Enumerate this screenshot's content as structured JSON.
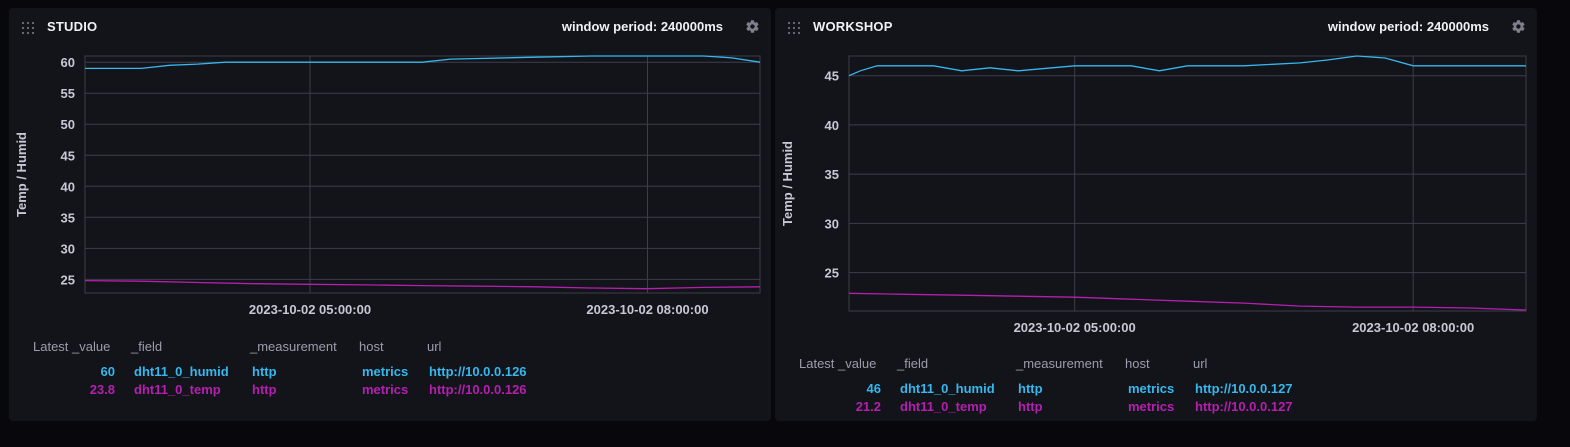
{
  "colors": {
    "humid": "#34b8ee",
    "temp": "#b51fb0",
    "grid": "#3c3e4a",
    "axis_text": "#c6c9d4"
  },
  "panels": [
    {
      "title": "STUDIO",
      "window_period": "window period: 240000ms",
      "legend": {
        "headers": [
          "Latest _value",
          "_field",
          "_measurement",
          "host",
          "url"
        ],
        "rows": [
          {
            "value": "60",
            "field": "dht11_0_humid",
            "measurement": "http",
            "host": "metrics",
            "url": "http://10.0.0.126"
          },
          {
            "value": "23.8",
            "field": "dht11_0_temp",
            "measurement": "http",
            "host": "metrics",
            "url": "http://10.0.0.126"
          }
        ]
      }
    },
    {
      "title": "WORKSHOP",
      "window_period": "window period: 240000ms",
      "legend": {
        "headers": [
          "Latest _value",
          "_field",
          "_measurement",
          "host",
          "url"
        ],
        "rows": [
          {
            "value": "46",
            "field": "dht11_0_humid",
            "measurement": "http",
            "host": "metrics",
            "url": "http://10.0.0.127"
          },
          {
            "value": "21.2",
            "field": "dht11_0_temp",
            "measurement": "http",
            "host": "metrics",
            "url": "http://10.0.0.127"
          }
        ]
      }
    }
  ],
  "chart_data": [
    {
      "type": "line",
      "title": "STUDIO",
      "ylabel": "Temp / Humid",
      "xlabel": "",
      "ylim": [
        22.8,
        61
      ],
      "yticks": [
        25,
        30,
        35,
        40,
        45,
        50,
        55,
        60
      ],
      "xlim_hours": [
        3.0,
        9.0
      ],
      "xticks": [
        {
          "hour": 5.0,
          "label": "2023-10-02 05:00:00"
        },
        {
          "hour": 8.0,
          "label": "2023-10-02 08:00:00"
        }
      ],
      "series": [
        {
          "name": "dht11_0_humid",
          "x_hours": [
            3.0,
            3.5,
            3.75,
            4.0,
            4.25,
            4.5,
            5.0,
            5.5,
            6.0,
            6.25,
            6.5,
            7.0,
            7.5,
            8.0,
            8.5,
            8.75,
            9.0
          ],
          "values": [
            59,
            59,
            59.5,
            59.7,
            60,
            60,
            60,
            60,
            60,
            60.5,
            60.6,
            60.8,
            61,
            61,
            61,
            60.7,
            60
          ]
        },
        {
          "name": "dht11_0_temp",
          "x_hours": [
            3.0,
            3.5,
            4.0,
            4.5,
            5.0,
            5.5,
            6.0,
            6.5,
            7.0,
            7.5,
            8.0,
            8.5,
            9.0
          ],
          "values": [
            24.8,
            24.7,
            24.5,
            24.3,
            24.2,
            24.1,
            24.0,
            23.9,
            23.8,
            23.6,
            23.5,
            23.7,
            23.8
          ]
        }
      ]
    },
    {
      "type": "line",
      "title": "WORKSHOP",
      "ylabel": "Temp / Humid",
      "xlabel": "",
      "ylim": [
        21.1,
        47
      ],
      "yticks": [
        25,
        30,
        35,
        40,
        45
      ],
      "xlim_hours": [
        3.0,
        9.0
      ],
      "xticks": [
        {
          "hour": 5.0,
          "label": "2023-10-02 05:00:00"
        },
        {
          "hour": 8.0,
          "label": "2023-10-02 08:00:00"
        }
      ],
      "series": [
        {
          "name": "dht11_0_humid",
          "x_hours": [
            3.0,
            3.1,
            3.25,
            3.5,
            3.75,
            4.0,
            4.25,
            4.5,
            5.0,
            5.5,
            5.75,
            6.0,
            6.5,
            7.0,
            7.25,
            7.5,
            7.75,
            8.0,
            8.5,
            9.0
          ],
          "values": [
            45,
            45.5,
            46,
            46,
            46,
            45.5,
            45.8,
            45.5,
            46,
            46,
            45.5,
            46,
            46,
            46.3,
            46.6,
            47,
            46.8,
            46,
            46,
            46
          ]
        },
        {
          "name": "dht11_0_temp",
          "x_hours": [
            3.0,
            3.5,
            4.0,
            4.5,
            5.0,
            5.5,
            6.0,
            6.5,
            7.0,
            7.5,
            8.0,
            8.5,
            9.0
          ],
          "values": [
            22.9,
            22.8,
            22.7,
            22.6,
            22.5,
            22.3,
            22.1,
            21.9,
            21.6,
            21.5,
            21.5,
            21.4,
            21.2
          ]
        }
      ]
    }
  ]
}
